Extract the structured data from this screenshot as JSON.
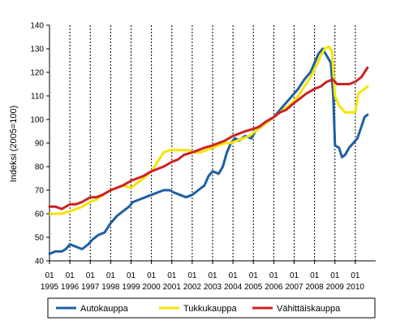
{
  "chart_data": {
    "type": "line",
    "title": "",
    "xlabel": "",
    "ylabel": "Indeksi (2005=100)",
    "ylim": [
      40,
      140
    ],
    "yticks": [
      40,
      50,
      60,
      70,
      80,
      90,
      100,
      110,
      120,
      130,
      140
    ],
    "xlim": [
      1995,
      2011
    ],
    "x_tick_month_label": "01",
    "x_tick_years": [
      1995,
      1996,
      1997,
      1998,
      1999,
      2000,
      2001,
      2002,
      2003,
      2004,
      2005,
      2006,
      2007,
      2008,
      2009,
      2010
    ],
    "x_tick_year_labels": [
      "1995",
      "1996",
      "1997",
      "1998",
      "1999",
      "2000",
      "2001",
      "2002",
      "2003",
      "2004",
      "2005",
      "2006",
      "2007",
      "2008",
      "2009",
      "2010"
    ],
    "grid": "vertical dashed at each January",
    "legend_position": "bottom",
    "series": [
      {
        "name": "Autokauppa",
        "color": "#1f5fa0",
        "points": [
          [
            1995.0,
            43
          ],
          [
            1995.3,
            44
          ],
          [
            1995.6,
            44
          ],
          [
            1995.8,
            45
          ],
          [
            1996.0,
            47
          ],
          [
            1996.3,
            46
          ],
          [
            1996.6,
            45
          ],
          [
            1996.9,
            47
          ],
          [
            1997.1,
            49
          ],
          [
            1997.4,
            51
          ],
          [
            1997.7,
            52
          ],
          [
            1998.0,
            56
          ],
          [
            1998.3,
            59
          ],
          [
            1998.6,
            61
          ],
          [
            1998.9,
            63
          ],
          [
            1999.1,
            65
          ],
          [
            1999.4,
            66
          ],
          [
            1999.7,
            67
          ],
          [
            2000.0,
            68
          ],
          [
            2000.3,
            69
          ],
          [
            2000.6,
            70
          ],
          [
            2000.9,
            70
          ],
          [
            2001.1,
            69
          ],
          [
            2001.4,
            68
          ],
          [
            2001.7,
            67
          ],
          [
            2002.0,
            68
          ],
          [
            2002.3,
            70
          ],
          [
            2002.6,
            72
          ],
          [
            2002.8,
            76
          ],
          [
            2003.0,
            78
          ],
          [
            2003.3,
            77
          ],
          [
            2003.5,
            80
          ],
          [
            2003.7,
            86
          ],
          [
            2003.9,
            90
          ],
          [
            2004.1,
            92
          ],
          [
            2004.3,
            91
          ],
          [
            2004.6,
            93
          ],
          [
            2004.9,
            92
          ],
          [
            2005.1,
            95
          ],
          [
            2005.4,
            97
          ],
          [
            2005.7,
            99
          ],
          [
            2006.0,
            101
          ],
          [
            2006.3,
            104
          ],
          [
            2006.6,
            107
          ],
          [
            2006.9,
            110
          ],
          [
            2007.2,
            113
          ],
          [
            2007.5,
            117
          ],
          [
            2007.8,
            120
          ],
          [
            2008.0,
            124
          ],
          [
            2008.2,
            128
          ],
          [
            2008.4,
            130
          ],
          [
            2008.6,
            127
          ],
          [
            2008.8,
            124
          ],
          [
            2008.92,
            110
          ],
          [
            2009.0,
            89
          ],
          [
            2009.2,
            88
          ],
          [
            2009.35,
            84
          ],
          [
            2009.5,
            85
          ],
          [
            2009.7,
            88
          ],
          [
            2009.9,
            90
          ],
          [
            2010.1,
            92
          ],
          [
            2010.3,
            97
          ],
          [
            2010.45,
            101
          ],
          [
            2010.6,
            102
          ]
        ]
      },
      {
        "name": "Tukkukauppa",
        "color": "#f5e400",
        "points": [
          [
            1995.0,
            60
          ],
          [
            1995.3,
            60
          ],
          [
            1995.6,
            60
          ],
          [
            1996.0,
            61
          ],
          [
            1996.3,
            62
          ],
          [
            1996.6,
            63
          ],
          [
            1997.0,
            65
          ],
          [
            1997.3,
            66
          ],
          [
            1997.6,
            68
          ],
          [
            1998.0,
            70
          ],
          [
            1998.3,
            71
          ],
          [
            1998.6,
            72
          ],
          [
            1999.0,
            71
          ],
          [
            1999.3,
            73
          ],
          [
            1999.6,
            75
          ],
          [
            2000.0,
            78
          ],
          [
            2000.3,
            82
          ],
          [
            2000.6,
            86
          ],
          [
            2000.9,
            87
          ],
          [
            2001.2,
            87
          ],
          [
            2001.5,
            87
          ],
          [
            2001.8,
            87
          ],
          [
            2002.1,
            86
          ],
          [
            2002.4,
            86
          ],
          [
            2002.7,
            87
          ],
          [
            2003.0,
            88
          ],
          [
            2003.3,
            89
          ],
          [
            2003.6,
            90
          ],
          [
            2003.9,
            90
          ],
          [
            2004.2,
            91
          ],
          [
            2004.5,
            92
          ],
          [
            2004.8,
            93
          ],
          [
            2005.1,
            95
          ],
          [
            2005.4,
            97
          ],
          [
            2005.7,
            99
          ],
          [
            2006.0,
            101
          ],
          [
            2006.3,
            103
          ],
          [
            2006.6,
            105
          ],
          [
            2006.9,
            107
          ],
          [
            2007.2,
            110
          ],
          [
            2007.5,
            114
          ],
          [
            2007.8,
            118
          ],
          [
            2008.1,
            123
          ],
          [
            2008.3,
            127
          ],
          [
            2008.5,
            130
          ],
          [
            2008.7,
            131
          ],
          [
            2008.85,
            129
          ],
          [
            2009.0,
            110
          ],
          [
            2009.2,
            106
          ],
          [
            2009.5,
            103
          ],
          [
            2009.8,
            103
          ],
          [
            2010.0,
            103
          ],
          [
            2010.15,
            111
          ],
          [
            2010.3,
            112
          ],
          [
            2010.45,
            113
          ],
          [
            2010.6,
            114
          ]
        ]
      },
      {
        "name": "Vähittäiskauppa",
        "color": "#cc2222",
        "points": [
          [
            1995.0,
            63
          ],
          [
            1995.3,
            63
          ],
          [
            1995.6,
            62
          ],
          [
            1996.0,
            64
          ],
          [
            1996.3,
            64
          ],
          [
            1996.6,
            65
          ],
          [
            1997.0,
            67
          ],
          [
            1997.3,
            67
          ],
          [
            1997.6,
            68
          ],
          [
            1998.0,
            70
          ],
          [
            1998.3,
            71
          ],
          [
            1998.6,
            72
          ],
          [
            1999.0,
            74
          ],
          [
            1999.3,
            75
          ],
          [
            1999.6,
            76
          ],
          [
            2000.0,
            78
          ],
          [
            2000.3,
            79
          ],
          [
            2000.6,
            80
          ],
          [
            2001.0,
            82
          ],
          [
            2001.3,
            83
          ],
          [
            2001.6,
            85
          ],
          [
            2002.0,
            86
          ],
          [
            2002.3,
            87
          ],
          [
            2002.6,
            88
          ],
          [
            2003.0,
            89
          ],
          [
            2003.3,
            90
          ],
          [
            2003.6,
            91
          ],
          [
            2004.0,
            93
          ],
          [
            2004.3,
            94
          ],
          [
            2004.6,
            95
          ],
          [
            2005.0,
            96
          ],
          [
            2005.3,
            97
          ],
          [
            2005.6,
            99
          ],
          [
            2006.0,
            101
          ],
          [
            2006.3,
            103
          ],
          [
            2006.6,
            104
          ],
          [
            2007.0,
            107
          ],
          [
            2007.3,
            109
          ],
          [
            2007.6,
            111
          ],
          [
            2008.0,
            113
          ],
          [
            2008.3,
            114
          ],
          [
            2008.6,
            116
          ],
          [
            2008.9,
            117
          ],
          [
            2009.1,
            115
          ],
          [
            2009.4,
            115
          ],
          [
            2009.7,
            115
          ],
          [
            2010.0,
            116
          ],
          [
            2010.3,
            118
          ],
          [
            2010.6,
            122
          ]
        ]
      }
    ]
  }
}
